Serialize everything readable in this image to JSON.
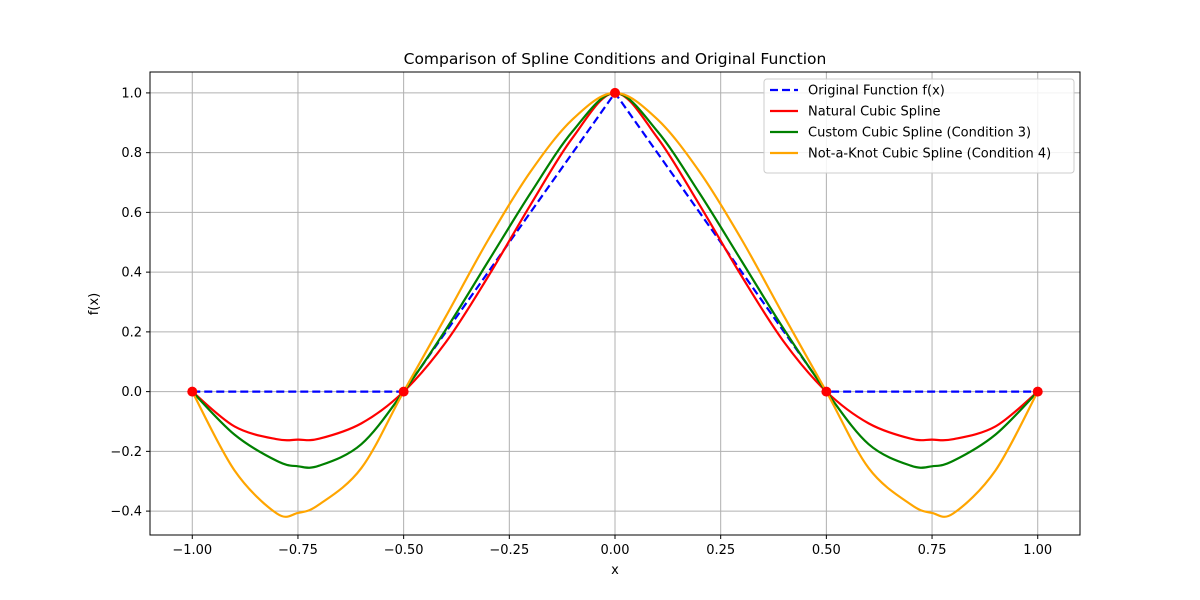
{
  "chart_data": {
    "type": "line",
    "title": "Comparison of Spline Conditions and Original Function",
    "xlabel": "x",
    "ylabel": "f(x)",
    "xlim": [
      -1.1,
      1.1
    ],
    "ylim": [
      -0.48,
      1.07
    ],
    "x_ticks": [
      -1.0,
      -0.75,
      -0.5,
      -0.25,
      0.0,
      0.25,
      0.5,
      0.75,
      1.0
    ],
    "x_tick_labels": [
      "−1.00",
      "−0.75",
      "−0.50",
      "−0.25",
      "0.00",
      "0.25",
      "0.50",
      "0.75",
      "1.00"
    ],
    "y_ticks": [
      -0.4,
      -0.2,
      0.0,
      0.2,
      0.4,
      0.6,
      0.8,
      1.0
    ],
    "y_tick_labels": [
      "−0.4",
      "−0.2",
      "0.0",
      "0.2",
      "0.4",
      "0.6",
      "0.8",
      "1.0"
    ],
    "grid": true,
    "legend_position": "top-right",
    "knots": {
      "x": [
        -1.0,
        -0.5,
        0.0,
        0.5,
        1.0
      ],
      "y": [
        0.0,
        0.0,
        1.0,
        0.0,
        0.0
      ],
      "color": "#ff0000"
    },
    "series": [
      {
        "name": "Original Function f(x)",
        "color": "#0000ff",
        "style": "dashed",
        "x": [
          -1.0,
          -0.5,
          0.0,
          0.5,
          1.0
        ],
        "y": [
          0.0,
          0.0,
          1.0,
          0.0,
          0.0
        ]
      },
      {
        "name": "Natural Cubic Spline",
        "color": "#ff0000",
        "style": "solid",
        "x": [
          -1.0,
          -0.9,
          -0.8,
          -0.75,
          -0.7,
          -0.6,
          -0.5,
          -0.4,
          -0.3,
          -0.2,
          -0.1,
          0.0,
          0.1,
          0.2,
          0.3,
          0.4,
          0.5,
          0.6,
          0.7,
          0.75,
          0.8,
          0.9,
          1.0
        ],
        "y": [
          0.0,
          -0.1166,
          -0.1594,
          -0.1607,
          -0.1577,
          -0.1063,
          0.0,
          0.1657,
          0.3854,
          0.625,
          0.8506,
          1.0,
          0.8506,
          0.625,
          0.3854,
          0.1657,
          0.0,
          -0.1063,
          -0.1577,
          -0.1607,
          -0.1594,
          -0.1166,
          0.0
        ]
      },
      {
        "name": "Custom Cubic Spline (Condition 3)",
        "color": "#008000",
        "style": "solid",
        "x": [
          -1.0,
          -0.9,
          -0.8,
          -0.75,
          -0.7,
          -0.6,
          -0.5,
          -0.4,
          -0.3,
          -0.2,
          -0.1,
          0.0,
          0.1,
          0.2,
          0.3,
          0.4,
          0.5,
          0.6,
          0.7,
          0.75,
          0.8,
          0.9,
          1.0
        ],
        "y": [
          0.0,
          -0.144,
          -0.232,
          -0.25,
          -0.248,
          -0.176,
          0.0,
          0.208,
          0.436,
          0.664,
          0.872,
          1.0,
          0.872,
          0.664,
          0.436,
          0.208,
          0.0,
          -0.176,
          -0.248,
          -0.25,
          -0.232,
          -0.144,
          0.0
        ]
      },
      {
        "name": "Not-a-Knot Cubic Spline (Condition 4)",
        "color": "#ffa500",
        "style": "solid",
        "x": [
          -1.0,
          -0.9,
          -0.8,
          -0.75,
          -0.7,
          -0.6,
          -0.5,
          -0.4,
          -0.3,
          -0.2,
          -0.1,
          0.0,
          0.1,
          0.2,
          0.3,
          0.4,
          0.5,
          0.6,
          0.7,
          0.75,
          0.8,
          0.9,
          1.0
        ],
        "y": [
          0.0,
          -0.264,
          -0.408,
          -0.406,
          -0.378,
          -0.256,
          0.0,
          0.252,
          0.508,
          0.736,
          0.912,
          1.0,
          0.912,
          0.736,
          0.508,
          0.252,
          0.0,
          -0.256,
          -0.378,
          -0.406,
          -0.408,
          -0.264,
          0.0
        ]
      }
    ]
  }
}
